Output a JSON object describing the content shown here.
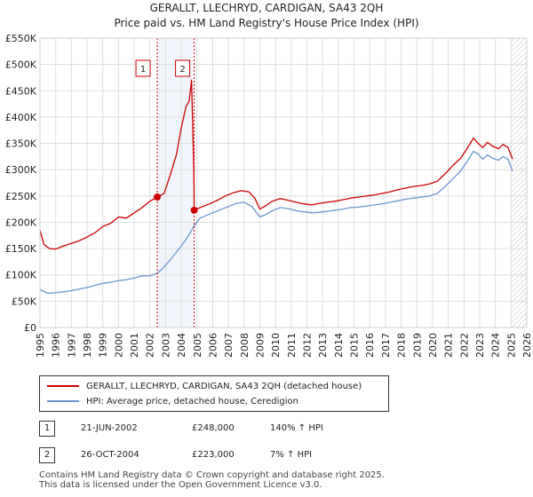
{
  "chart_data": {
    "type": "line",
    "title": "GERALLT, LLECHRYD, CARDIGAN, SA43 2QH",
    "subtitle": "Price paid vs. HM Land Registry's House Price Index (HPI)",
    "x_range": [
      1995,
      2026
    ],
    "y_range": [
      0,
      550000
    ],
    "x_ticks": [
      "1995",
      "1996",
      "1997",
      "1998",
      "1999",
      "2000",
      "2001",
      "2002",
      "2003",
      "2004",
      "2005",
      "2006",
      "2007",
      "2008",
      "2009",
      "2010",
      "2011",
      "2012",
      "2013",
      "2014",
      "2015",
      "2016",
      "2017",
      "2018",
      "2019",
      "2020",
      "2021",
      "2022",
      "2023",
      "2024",
      "2025",
      "2026"
    ],
    "y_ticks": [
      {
        "value": 0,
        "label": "£0"
      },
      {
        "value": 50000,
        "label": "£50K"
      },
      {
        "value": 100000,
        "label": "£100K"
      },
      {
        "value": 150000,
        "label": "£150K"
      },
      {
        "value": 200000,
        "label": "£200K"
      },
      {
        "value": 250000,
        "label": "£250K"
      },
      {
        "value": 300000,
        "label": "£300K"
      },
      {
        "value": 350000,
        "label": "£350K"
      },
      {
        "value": 400000,
        "label": "£400K"
      },
      {
        "value": 450000,
        "label": "£450K"
      },
      {
        "value": 500000,
        "label": "£500K"
      },
      {
        "value": 550000,
        "label": "£550K"
      }
    ],
    "grid": true,
    "forecast_hatch_from": 2025.0,
    "sale_shading": [
      2002.47,
      2004.82
    ],
    "series": [
      {
        "name": "GERALLT, LLECHRYD, CARDIGAN, SA43 2QH (detached house)",
        "color": "#cc0000",
        "points": [
          [
            1995.0,
            185000
          ],
          [
            1995.25,
            158000
          ],
          [
            1995.6,
            150000
          ],
          [
            1996.0,
            149000
          ],
          [
            1996.5,
            155000
          ],
          [
            1997.0,
            160000
          ],
          [
            1997.5,
            165000
          ],
          [
            1998.0,
            172000
          ],
          [
            1998.5,
            180000
          ],
          [
            1999.0,
            192000
          ],
          [
            1999.5,
            198000
          ],
          [
            2000.0,
            210000
          ],
          [
            2000.5,
            208000
          ],
          [
            2001.0,
            218000
          ],
          [
            2001.5,
            228000
          ],
          [
            2002.0,
            240000
          ],
          [
            2002.47,
            248000
          ],
          [
            2002.9,
            255000
          ],
          [
            2003.3,
            290000
          ],
          [
            2003.7,
            330000
          ],
          [
            2004.0,
            380000
          ],
          [
            2004.3,
            420000
          ],
          [
            2004.5,
            430000
          ],
          [
            2004.65,
            470000
          ],
          [
            2004.8,
            300000
          ],
          [
            2004.82,
            223000
          ],
          [
            2005.2,
            228000
          ],
          [
            2005.8,
            235000
          ],
          [
            2006.3,
            242000
          ],
          [
            2006.8,
            250000
          ],
          [
            2007.3,
            256000
          ],
          [
            2007.8,
            260000
          ],
          [
            2008.3,
            258000
          ],
          [
            2008.7,
            245000
          ],
          [
            2009.0,
            225000
          ],
          [
            2009.4,
            232000
          ],
          [
            2009.8,
            240000
          ],
          [
            2010.3,
            245000
          ],
          [
            2010.8,
            242000
          ],
          [
            2011.3,
            238000
          ],
          [
            2011.8,
            235000
          ],
          [
            2012.3,
            233000
          ],
          [
            2012.8,
            236000
          ],
          [
            2013.3,
            238000
          ],
          [
            2013.8,
            240000
          ],
          [
            2014.3,
            243000
          ],
          [
            2014.8,
            246000
          ],
          [
            2015.3,
            248000
          ],
          [
            2015.8,
            250000
          ],
          [
            2016.3,
            252000
          ],
          [
            2016.8,
            255000
          ],
          [
            2017.3,
            258000
          ],
          [
            2017.8,
            262000
          ],
          [
            2018.3,
            265000
          ],
          [
            2018.8,
            268000
          ],
          [
            2019.3,
            270000
          ],
          [
            2019.8,
            273000
          ],
          [
            2020.3,
            278000
          ],
          [
            2020.8,
            292000
          ],
          [
            2021.3,
            308000
          ],
          [
            2021.8,
            322000
          ],
          [
            2022.3,
            345000
          ],
          [
            2022.6,
            360000
          ],
          [
            2022.9,
            350000
          ],
          [
            2023.2,
            342000
          ],
          [
            2023.5,
            352000
          ],
          [
            2023.8,
            345000
          ],
          [
            2024.2,
            340000
          ],
          [
            2024.5,
            348000
          ],
          [
            2024.8,
            342000
          ],
          [
            2025.1,
            320000
          ]
        ]
      },
      {
        "name": "HPI: Average price, detached house, Ceredigion",
        "color": "#6a96cf",
        "points": [
          [
            1995.0,
            72000
          ],
          [
            1995.5,
            65000
          ],
          [
            1996.0,
            66000
          ],
          [
            1996.5,
            68000
          ],
          [
            1997.0,
            70000
          ],
          [
            1997.5,
            73000
          ],
          [
            1998.0,
            76000
          ],
          [
            1998.5,
            80000
          ],
          [
            1999.0,
            84000
          ],
          [
            1999.5,
            86000
          ],
          [
            2000.0,
            89000
          ],
          [
            2000.5,
            91000
          ],
          [
            2001.0,
            94000
          ],
          [
            2001.5,
            98000
          ],
          [
            2002.0,
            98000
          ],
          [
            2002.47,
            103000
          ],
          [
            2002.8,
            112000
          ],
          [
            2003.2,
            125000
          ],
          [
            2003.6,
            140000
          ],
          [
            2004.0,
            155000
          ],
          [
            2004.4,
            172000
          ],
          [
            2004.82,
            193000
          ],
          [
            2005.2,
            208000
          ],
          [
            2005.6,
            213000
          ],
          [
            2006.0,
            218000
          ],
          [
            2006.5,
            224000
          ],
          [
            2007.0,
            230000
          ],
          [
            2007.5,
            236000
          ],
          [
            2008.0,
            238000
          ],
          [
            2008.5,
            230000
          ],
          [
            2009.0,
            210000
          ],
          [
            2009.4,
            215000
          ],
          [
            2009.8,
            222000
          ],
          [
            2010.3,
            228000
          ],
          [
            2010.8,
            226000
          ],
          [
            2011.3,
            222000
          ],
          [
            2011.8,
            220000
          ],
          [
            2012.3,
            218000
          ],
          [
            2012.8,
            219000
          ],
          [
            2013.3,
            221000
          ],
          [
            2013.8,
            223000
          ],
          [
            2014.3,
            225000
          ],
          [
            2014.8,
            228000
          ],
          [
            2015.3,
            229000
          ],
          [
            2015.8,
            231000
          ],
          [
            2016.3,
            233000
          ],
          [
            2016.8,
            235000
          ],
          [
            2017.3,
            238000
          ],
          [
            2017.8,
            241000
          ],
          [
            2018.3,
            244000
          ],
          [
            2018.8,
            246000
          ],
          [
            2019.3,
            248000
          ],
          [
            2019.8,
            250000
          ],
          [
            2020.3,
            255000
          ],
          [
            2020.8,
            268000
          ],
          [
            2021.3,
            283000
          ],
          [
            2021.8,
            298000
          ],
          [
            2022.3,
            320000
          ],
          [
            2022.6,
            335000
          ],
          [
            2022.9,
            330000
          ],
          [
            2023.2,
            320000
          ],
          [
            2023.5,
            328000
          ],
          [
            2023.8,
            322000
          ],
          [
            2024.2,
            318000
          ],
          [
            2024.5,
            325000
          ],
          [
            2024.8,
            320000
          ],
          [
            2025.1,
            297000
          ]
        ]
      }
    ],
    "markers": [
      {
        "label": "1",
        "x": 2002.47,
        "y": 248000
      },
      {
        "label": "2",
        "x": 2004.82,
        "y": 223000
      }
    ]
  },
  "legend": {
    "items": [
      {
        "label": "GERALLT, LLECHRYD, CARDIGAN, SA43 2QH (detached house)",
        "color": "#cc0000"
      },
      {
        "label": "HPI: Average price, detached house, Ceredigion",
        "color": "#6a96cf"
      }
    ]
  },
  "transactions": [
    {
      "num": "1",
      "date": "21-JUN-2002",
      "price": "£248,000",
      "pct": "140% ↑ HPI"
    },
    {
      "num": "2",
      "date": "26-OCT-2004",
      "price": "£223,000",
      "pct": "7% ↑ HPI"
    }
  ],
  "footer": {
    "line1": "Contains HM Land Registry data © Crown copyright and database right 2025.",
    "line2": "This data is licensed under the Open Government Licence v3.0."
  }
}
